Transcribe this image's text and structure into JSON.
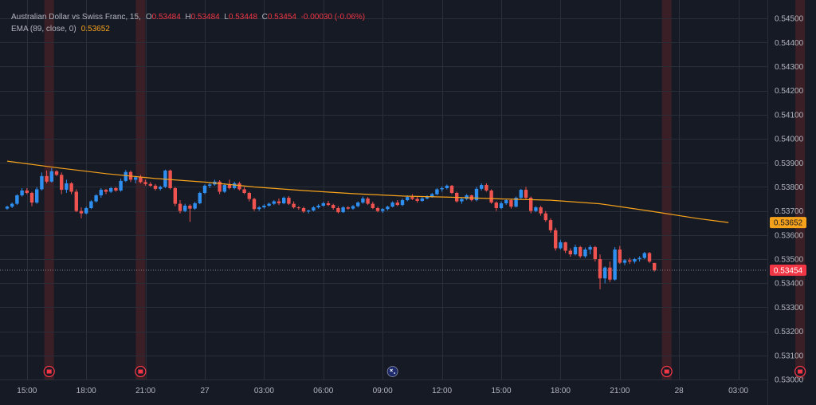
{
  "legend": {
    "title": "Australian Dollar vs Swiss Franc, 15,",
    "o_label": "O",
    "o_value": "0.53484",
    "h_label": "H",
    "h_value": "0.53484",
    "l_label": "L",
    "l_value": "0.53448",
    "c_label": "C",
    "c_value": "0.53454",
    "change": "-0.00030 (-0.06%)",
    "ema_label": "EMA (89, close, 0)",
    "ema_value": "0.53652"
  },
  "colors": {
    "background": "#161a25",
    "grid": "#2a2e39",
    "up": "#2f8ff0",
    "down": "#ef5350",
    "ema": "#f7a21b",
    "session_band": "#3a1f26",
    "event_icon": "#f23645"
  },
  "price_tags": {
    "ema": "0.53652",
    "last": "0.53454"
  },
  "chart_data": {
    "type": "candlestick",
    "title": "Australian Dollar vs Swiss Franc, 15",
    "ylim": [
      0.53,
      0.5455
    ],
    "y_ticks": [
      "0.54500",
      "0.54400",
      "0.54300",
      "0.54200",
      "0.54100",
      "0.54000",
      "0.53900",
      "0.53800",
      "0.53700",
      "0.53600",
      "0.53500",
      "0.53400",
      "0.53300",
      "0.53200",
      "0.53100",
      "0.53000"
    ],
    "y_tick_values": [
      0.545,
      0.544,
      0.543,
      0.542,
      0.541,
      0.54,
      0.539,
      0.538,
      0.537,
      0.536,
      0.535,
      0.534,
      0.533,
      0.532,
      0.531,
      0.53
    ],
    "x_ticks": [
      {
        "label": "15:00",
        "t": 4
      },
      {
        "label": "18:00",
        "t": 16
      },
      {
        "label": "21:00",
        "t": 28
      },
      {
        "label": "27",
        "t": 40
      },
      {
        "label": "03:00",
        "t": 52
      },
      {
        "label": "06:00",
        "t": 64
      },
      {
        "label": "09:00",
        "t": 76
      },
      {
        "label": "12:00",
        "t": 88
      },
      {
        "label": "15:00",
        "t": 100
      },
      {
        "label": "18:00",
        "t": 112
      },
      {
        "label": "21:00",
        "t": 124
      },
      {
        "label": "28",
        "t": 136
      },
      {
        "label": "03:00",
        "t": 148
      }
    ],
    "session_markers_t": [
      8.5,
      27,
      133.5,
      160.5
    ],
    "event_icon_t": 78,
    "ema_points": [
      [
        0,
        0.53907
      ],
      [
        10,
        0.5388
      ],
      [
        20,
        0.53855
      ],
      [
        30,
        0.53835
      ],
      [
        40,
        0.5382
      ],
      [
        50,
        0.538
      ],
      [
        60,
        0.53785
      ],
      [
        70,
        0.53772
      ],
      [
        80,
        0.53762
      ],
      [
        90,
        0.53757
      ],
      [
        100,
        0.5375
      ],
      [
        110,
        0.53745
      ],
      [
        120,
        0.5373
      ],
      [
        130,
        0.537
      ],
      [
        140,
        0.53668
      ],
      [
        146,
        0.53652
      ]
    ],
    "ohlc": [
      [
        0.5371,
        0.53722,
        0.53705,
        0.53718
      ],
      [
        0.53718,
        0.53735,
        0.53712,
        0.5373
      ],
      [
        0.5373,
        0.5377,
        0.53725,
        0.53765
      ],
      [
        0.53765,
        0.53795,
        0.5376,
        0.53785
      ],
      [
        0.53785,
        0.53795,
        0.5377,
        0.53775
      ],
      [
        0.53775,
        0.5378,
        0.5372,
        0.53735
      ],
      [
        0.53735,
        0.538,
        0.5373,
        0.5379
      ],
      [
        0.5379,
        0.5386,
        0.53785,
        0.53845
      ],
      [
        0.53845,
        0.53868,
        0.53815,
        0.53822
      ],
      [
        0.53822,
        0.53878,
        0.53818,
        0.53865
      ],
      [
        0.53865,
        0.5387,
        0.53845,
        0.5385
      ],
      [
        0.5385,
        0.5386,
        0.5377,
        0.53788
      ],
      [
        0.53788,
        0.5383,
        0.53775,
        0.53815
      ],
      [
        0.53815,
        0.5382,
        0.5377,
        0.5378
      ],
      [
        0.5378,
        0.5379,
        0.53695,
        0.537
      ],
      [
        0.537,
        0.53715,
        0.5367,
        0.5369
      ],
      [
        0.5369,
        0.53718,
        0.53686,
        0.53712
      ],
      [
        0.53712,
        0.53745,
        0.53708,
        0.5374
      ],
      [
        0.5374,
        0.5377,
        0.53735,
        0.53765
      ],
      [
        0.53765,
        0.53795,
        0.53755,
        0.53788
      ],
      [
        0.53788,
        0.53792,
        0.5377,
        0.5378
      ],
      [
        0.5378,
        0.538,
        0.53775,
        0.53795
      ],
      [
        0.53795,
        0.538,
        0.5378,
        0.53785
      ],
      [
        0.53785,
        0.53835,
        0.5378,
        0.53825
      ],
      [
        0.53825,
        0.5387,
        0.5382,
        0.53862
      ],
      [
        0.53862,
        0.53868,
        0.5382,
        0.5383
      ],
      [
        0.5383,
        0.53845,
        0.53815,
        0.5384
      ],
      [
        0.5384,
        0.5385,
        0.53815,
        0.5382
      ],
      [
        0.5382,
        0.5383,
        0.53805,
        0.53812
      ],
      [
        0.53812,
        0.5382,
        0.538,
        0.53805
      ],
      [
        0.53805,
        0.53812,
        0.53785,
        0.53792
      ],
      [
        0.53792,
        0.53805,
        0.53785,
        0.538
      ],
      [
        0.538,
        0.53872,
        0.53795,
        0.53868
      ],
      [
        0.53868,
        0.53872,
        0.5379,
        0.53795
      ],
      [
        0.53795,
        0.538,
        0.5372,
        0.5373
      ],
      [
        0.5373,
        0.53745,
        0.5369,
        0.537
      ],
      [
        0.537,
        0.5373,
        0.53695,
        0.53722
      ],
      [
        0.53722,
        0.53728,
        0.53655,
        0.5371
      ],
      [
        0.5371,
        0.53738,
        0.53705,
        0.53732
      ],
      [
        0.53732,
        0.5378,
        0.53728,
        0.53775
      ],
      [
        0.53775,
        0.5381,
        0.5377,
        0.53805
      ],
      [
        0.53805,
        0.53818,
        0.53795,
        0.5381
      ],
      [
        0.5381,
        0.5383,
        0.53805,
        0.53822
      ],
      [
        0.53822,
        0.53828,
        0.5377,
        0.5378
      ],
      [
        0.5378,
        0.53815,
        0.53775,
        0.53808
      ],
      [
        0.53808,
        0.5383,
        0.5379,
        0.53795
      ],
      [
        0.53795,
        0.53822,
        0.5379,
        0.53815
      ],
      [
        0.53815,
        0.53822,
        0.53785,
        0.5379
      ],
      [
        0.5379,
        0.538,
        0.5377,
        0.53775
      ],
      [
        0.53775,
        0.5378,
        0.5374,
        0.5375
      ],
      [
        0.5375,
        0.53755,
        0.537,
        0.53708
      ],
      [
        0.53708,
        0.5372,
        0.537,
        0.53715
      ],
      [
        0.53715,
        0.53728,
        0.5371,
        0.53722
      ],
      [
        0.53722,
        0.53735,
        0.53718,
        0.5373
      ],
      [
        0.5373,
        0.53745,
        0.53725,
        0.5374
      ],
      [
        0.5374,
        0.53752,
        0.53725,
        0.53732
      ],
      [
        0.53732,
        0.5376,
        0.53728,
        0.53755
      ],
      [
        0.53755,
        0.53762,
        0.53725,
        0.5373
      ],
      [
        0.5373,
        0.5374,
        0.5371,
        0.53715
      ],
      [
        0.53715,
        0.5372,
        0.53705,
        0.53712
      ],
      [
        0.53712,
        0.53718,
        0.53692,
        0.53698
      ],
      [
        0.53698,
        0.53705,
        0.5369,
        0.53702
      ],
      [
        0.53702,
        0.5372,
        0.53698,
        0.53715
      ],
      [
        0.53715,
        0.53728,
        0.5371,
        0.53722
      ],
      [
        0.53722,
        0.53738,
        0.53718,
        0.53732
      ],
      [
        0.53732,
        0.53742,
        0.5372,
        0.53725
      ],
      [
        0.53725,
        0.5373,
        0.53705,
        0.53712
      ],
      [
        0.53712,
        0.5372,
        0.5369,
        0.53695
      ],
      [
        0.53695,
        0.5372,
        0.53692,
        0.53715
      ],
      [
        0.53715,
        0.5372,
        0.53705,
        0.5371
      ],
      [
        0.5371,
        0.53725,
        0.53705,
        0.5372
      ],
      [
        0.5372,
        0.5374,
        0.53715,
        0.53735
      ],
      [
        0.53735,
        0.5376,
        0.5373,
        0.53752
      ],
      [
        0.53752,
        0.53758,
        0.53725,
        0.5373
      ],
      [
        0.5373,
        0.53738,
        0.53708,
        0.53712
      ],
      [
        0.53712,
        0.53718,
        0.53695,
        0.537
      ],
      [
        0.537,
        0.53712,
        0.53692,
        0.53708
      ],
      [
        0.53708,
        0.53722,
        0.53702,
        0.53718
      ],
      [
        0.53718,
        0.5374,
        0.53715,
        0.53735
      ],
      [
        0.53735,
        0.53745,
        0.5372,
        0.53725
      ],
      [
        0.53725,
        0.53752,
        0.5372,
        0.53745
      ],
      [
        0.53745,
        0.53765,
        0.5374,
        0.53758
      ],
      [
        0.53758,
        0.5377,
        0.53745,
        0.5375
      ],
      [
        0.5375,
        0.5376,
        0.53735,
        0.53742
      ],
      [
        0.53742,
        0.53758,
        0.53738,
        0.53752
      ],
      [
        0.53752,
        0.53765,
        0.53748,
        0.5376
      ],
      [
        0.5376,
        0.53775,
        0.53755,
        0.5377
      ],
      [
        0.5377,
        0.53795,
        0.53765,
        0.5379
      ],
      [
        0.5379,
        0.53802,
        0.5378,
        0.53795
      ],
      [
        0.53795,
        0.5381,
        0.5379,
        0.53805
      ],
      [
        0.53805,
        0.53808,
        0.5377,
        0.53775
      ],
      [
        0.53775,
        0.5378,
        0.53735,
        0.5374
      ],
      [
        0.5374,
        0.53755,
        0.5373,
        0.5375
      ],
      [
        0.5375,
        0.5377,
        0.53745,
        0.53765
      ],
      [
        0.53765,
        0.53768,
        0.5374,
        0.53745
      ],
      [
        0.53745,
        0.538,
        0.5374,
        0.53792
      ],
      [
        0.53792,
        0.53815,
        0.53785,
        0.53808
      ],
      [
        0.53808,
        0.53815,
        0.5378,
        0.53785
      ],
      [
        0.53785,
        0.5379,
        0.5373,
        0.53735
      ],
      [
        0.53735,
        0.5374,
        0.537,
        0.53712
      ],
      [
        0.53712,
        0.5374,
        0.53708,
        0.53732
      ],
      [
        0.53732,
        0.5375,
        0.53725,
        0.53745
      ],
      [
        0.53745,
        0.5375,
        0.5371,
        0.53718
      ],
      [
        0.53718,
        0.5376,
        0.53715,
        0.53755
      ],
      [
        0.53755,
        0.53792,
        0.5375,
        0.53788
      ],
      [
        0.53788,
        0.538,
        0.5375,
        0.53755
      ],
      [
        0.53755,
        0.5376,
        0.5369,
        0.537
      ],
      [
        0.537,
        0.5372,
        0.53695,
        0.53715
      ],
      [
        0.53715,
        0.53722,
        0.5368,
        0.5369
      ],
      [
        0.5369,
        0.537,
        0.53655,
        0.53662
      ],
      [
        0.53662,
        0.5367,
        0.5361,
        0.5362
      ],
      [
        0.5362,
        0.5363,
        0.53535,
        0.53545
      ],
      [
        0.53545,
        0.5358,
        0.5354,
        0.5357
      ],
      [
        0.5357,
        0.53572,
        0.53525,
        0.53535
      ],
      [
        0.53535,
        0.53545,
        0.5351,
        0.5352
      ],
      [
        0.5352,
        0.5356,
        0.53515,
        0.5355
      ],
      [
        0.5355,
        0.53555,
        0.53505,
        0.53512
      ],
      [
        0.53512,
        0.53548,
        0.53505,
        0.5354
      ],
      [
        0.5354,
        0.53558,
        0.5352,
        0.5355
      ],
      [
        0.5355,
        0.53555,
        0.5349,
        0.535
      ],
      [
        0.535,
        0.5352,
        0.53375,
        0.5342
      ],
      [
        0.5342,
        0.5347,
        0.534,
        0.53465
      ],
      [
        0.53465,
        0.5349,
        0.53405,
        0.53415
      ],
      [
        0.53415,
        0.5355,
        0.5341,
        0.5354
      ],
      [
        0.5354,
        0.53555,
        0.5348,
        0.53485
      ],
      [
        0.53485,
        0.535,
        0.53475,
        0.53495
      ],
      [
        0.53495,
        0.53505,
        0.5348,
        0.5349
      ],
      [
        0.5349,
        0.53505,
        0.53482,
        0.535
      ],
      [
        0.535,
        0.53512,
        0.5349,
        0.53505
      ],
      [
        0.53505,
        0.5353,
        0.535,
        0.53525
      ],
      [
        0.53525,
        0.5353,
        0.53484,
        0.5349
      ],
      [
        0.53484,
        0.53484,
        0.53448,
        0.53454
      ]
    ]
  }
}
